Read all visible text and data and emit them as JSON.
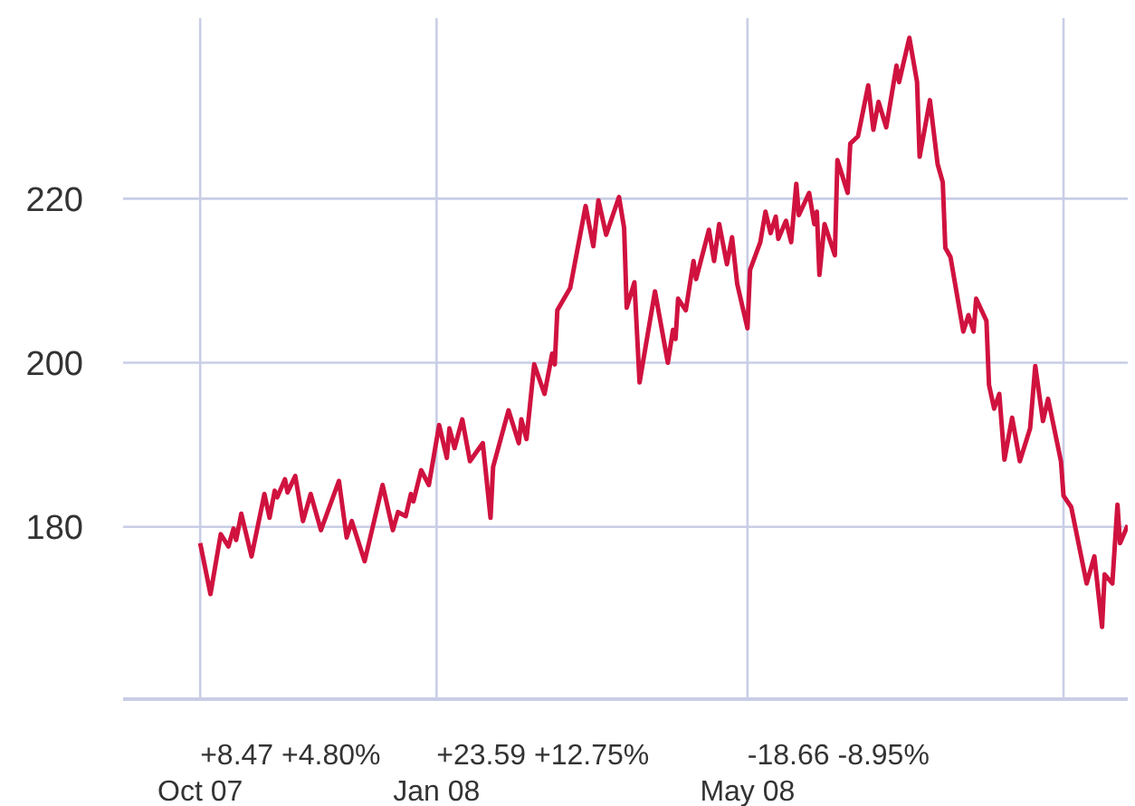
{
  "chart_data": {
    "type": "line",
    "color": "#d0123f",
    "xlim": [
      "2007-09-01",
      "2008-09-26"
    ],
    "xticks": [
      {
        "value": "2007-10-01",
        "label": "Oct 07"
      },
      {
        "value": "2008-01-01",
        "label": "Jan 08"
      },
      {
        "value": "2008-05-01",
        "label": "May 08"
      },
      {
        "value": "2008-09-01",
        "label": null
      }
    ],
    "ylim": [
      159,
      242
    ],
    "yticks": [
      180,
      200,
      220
    ],
    "grid": true,
    "marker": "none",
    "line_style": "solid",
    "annotations": [
      "+8.47 +4.80%",
      "+23.59 +12.75%",
      "-18.66 -8.95%"
    ],
    "x": [
      "2007-10-01",
      "2007-10-05",
      "2007-10-09",
      "2007-10-12",
      "2007-10-14",
      "2007-10-15",
      "2007-10-17",
      "2007-10-21",
      "2007-10-26",
      "2007-10-28",
      "2007-10-30",
      "2007-10-31",
      "2007-11-03",
      "2007-11-04",
      "2007-11-07",
      "2007-11-10",
      "2007-11-13",
      "2007-11-17",
      "2007-11-24",
      "2007-11-27",
      "2007-11-29",
      "2007-12-04",
      "2007-12-11",
      "2007-12-15",
      "2007-12-17",
      "2007-12-20",
      "2007-12-22",
      "2007-12-23",
      "2007-12-26",
      "2007-12-29",
      "2008-01-02",
      "2008-01-05",
      "2008-01-06",
      "2008-01-08",
      "2008-01-11",
      "2008-01-14",
      "2008-01-19",
      "2008-01-22",
      "2008-01-23",
      "2008-01-29",
      "2008-02-02",
      "2008-02-03",
      "2008-02-05",
      "2008-02-08",
      "2008-02-12",
      "2008-02-15",
      "2008-02-16",
      "2008-02-17",
      "2008-02-22",
      "2008-02-28",
      "2008-03-02",
      "2008-03-04",
      "2008-03-07",
      "2008-03-12",
      "2008-03-14",
      "2008-03-15",
      "2008-03-18",
      "2008-03-20",
      "2008-03-26",
      "2008-03-31",
      "2008-04-02",
      "2008-04-03",
      "2008-04-04",
      "2008-04-07",
      "2008-04-10",
      "2008-04-11",
      "2008-04-16",
      "2008-04-18",
      "2008-04-20",
      "2008-04-23",
      "2008-04-25",
      "2008-04-27",
      "2008-05-01",
      "2008-05-02",
      "2008-05-06",
      "2008-05-08",
      "2008-05-10",
      "2008-05-12",
      "2008-05-13",
      "2008-05-16",
      "2008-05-18",
      "2008-05-20",
      "2008-05-21",
      "2008-05-25",
      "2008-05-27",
      "2008-05-28",
      "2008-05-29",
      "2008-05-31",
      "2008-06-04",
      "2008-06-05",
      "2008-06-09",
      "2008-06-10",
      "2008-06-13",
      "2008-06-17",
      "2008-06-19",
      "2008-06-21",
      "2008-06-24",
      "2008-06-28",
      "2008-06-29",
      "2008-07-03",
      "2008-07-06",
      "2008-07-07",
      "2008-07-11",
      "2008-07-14",
      "2008-07-16",
      "2008-07-17",
      "2008-07-19",
      "2008-07-24",
      "2008-07-26",
      "2008-07-28",
      "2008-07-29",
      "2008-08-02",
      "2008-08-03",
      "2008-08-05",
      "2008-08-07",
      "2008-08-09",
      "2008-08-12",
      "2008-08-15",
      "2008-08-19",
      "2008-08-21",
      "2008-08-24",
      "2008-08-26",
      "2008-08-31",
      "2008-09-01",
      "2008-09-04",
      "2008-09-10",
      "2008-09-13",
      "2008-09-16",
      "2008-09-17",
      "2008-09-20",
      "2008-09-22",
      "2008-09-23",
      "2008-09-26"
    ],
    "values": [
      178.0,
      171.8,
      179.1,
      177.6,
      179.8,
      178.4,
      181.6,
      176.4,
      184.0,
      181.1,
      184.4,
      183.6,
      185.8,
      184.2,
      186.2,
      180.7,
      184.0,
      179.6,
      185.6,
      178.7,
      180.7,
      175.8,
      185.1,
      179.6,
      181.8,
      181.3,
      184.0,
      183.1,
      186.9,
      185.1,
      192.4,
      188.4,
      192.0,
      189.6,
      193.1,
      188.0,
      190.2,
      181.1,
      187.3,
      194.2,
      190.2,
      193.1,
      190.7,
      199.8,
      196.2,
      201.1,
      199.8,
      206.4,
      209.1,
      219.1,
      214.2,
      219.8,
      215.6,
      220.2,
      216.4,
      206.7,
      209.8,
      197.6,
      208.7,
      200.0,
      204.0,
      202.9,
      207.8,
      206.4,
      212.4,
      210.2,
      216.2,
      212.4,
      216.9,
      212.0,
      215.3,
      209.6,
      204.2,
      211.3,
      214.7,
      218.4,
      215.8,
      217.8,
      215.1,
      217.3,
      214.7,
      221.8,
      218.0,
      220.7,
      216.9,
      218.4,
      210.7,
      216.9,
      213.1,
      224.7,
      220.7,
      226.7,
      227.6,
      233.8,
      228.4,
      231.8,
      228.7,
      236.2,
      234.2,
      239.6,
      234.2,
      225.1,
      232.0,
      224.2,
      222.0,
      214.0,
      212.9,
      203.8,
      205.8,
      203.8,
      207.8,
      205.1,
      197.3,
      194.4,
      196.2,
      188.2,
      193.3,
      188.0,
      192.0,
      199.6,
      192.9,
      195.6,
      188.0,
      183.8,
      182.4,
      173.1,
      176.4,
      167.8,
      174.2,
      173.1,
      182.7,
      178.0,
      180.2
    ]
  }
}
